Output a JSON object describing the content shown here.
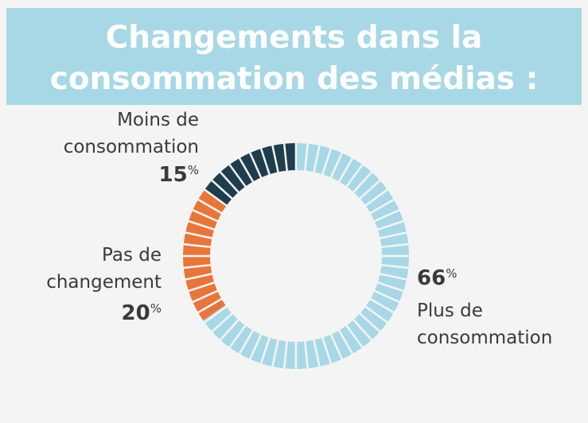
{
  "chart_data": {
    "type": "donut",
    "title": "Changements dans la consommation des médias :",
    "categories": [
      "Plus de consommation",
      "Pas de changement",
      "Moins de consommation"
    ],
    "values": [
      66,
      20,
      15
    ],
    "value_labels": [
      "66%",
      "20%",
      "15%"
    ],
    "colors": [
      "#a8d8e6",
      "#e8763a",
      "#1f3e4d"
    ]
  }
}
